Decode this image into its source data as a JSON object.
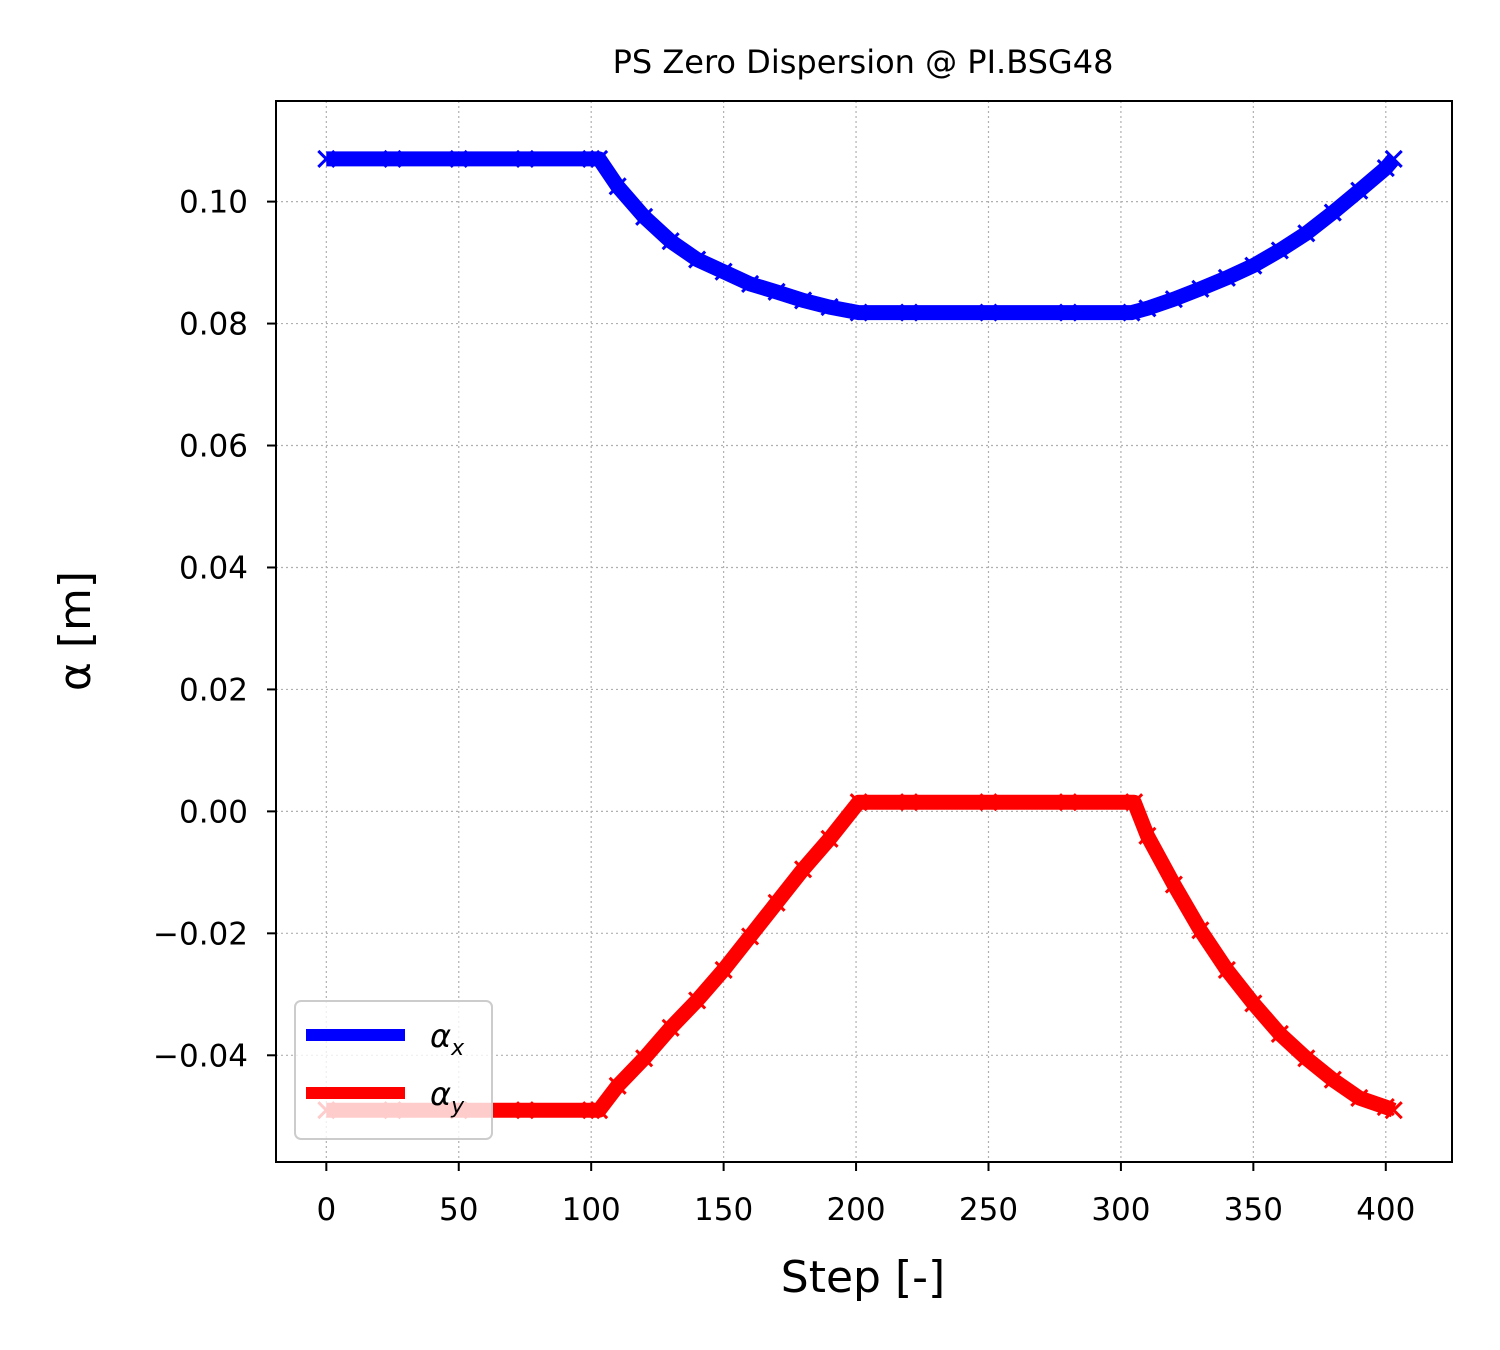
{
  "chart_data": {
    "type": "scatter",
    "title": "PS Zero Dispersion @ PI.BSG48",
    "xlabel": "Step [-]",
    "ylabel": "α [m]",
    "xlim": [
      -19,
      425
    ],
    "ylim": [
      -0.0575,
      0.1165
    ],
    "xticks": [
      0,
      50,
      100,
      150,
      200,
      250,
      300,
      350,
      400
    ],
    "yticks": [
      -0.04,
      -0.02,
      0.0,
      0.02,
      0.04,
      0.06,
      0.08,
      0.1
    ],
    "xtick_labels": [
      "0",
      "50",
      "100",
      "150",
      "200",
      "250",
      "300",
      "350",
      "400"
    ],
    "ytick_labels": [
      "−0.04",
      "−0.02",
      "0.00",
      "0.02",
      "0.04",
      "0.06",
      "0.08",
      "0.10"
    ],
    "grid": true,
    "legend_position": "lower-left",
    "marker": "x",
    "series": [
      {
        "name_base": "α",
        "name_sub": "x",
        "color": "#0000ff",
        "x": [
          0,
          25,
          50,
          75,
          100,
          103,
          110,
          120,
          130,
          140,
          150,
          160,
          170,
          180,
          190,
          201,
          220,
          250,
          280,
          304,
          310,
          320,
          330,
          340,
          350,
          360,
          370,
          380,
          390,
          400,
          403
        ],
        "y": [
          0.107,
          0.107,
          0.107,
          0.107,
          0.107,
          0.107,
          0.1025,
          0.0975,
          0.0935,
          0.0905,
          0.0885,
          0.0865,
          0.0852,
          0.0838,
          0.0827,
          0.0818,
          0.0818,
          0.0818,
          0.0818,
          0.0818,
          0.0825,
          0.084,
          0.0857,
          0.0875,
          0.0895,
          0.092,
          0.0948,
          0.0982,
          0.1018,
          0.1055,
          0.107
        ]
      },
      {
        "name_base": "α",
        "name_sub": "y",
        "color": "#ff0000",
        "x": [
          0,
          25,
          50,
          75,
          100,
          103,
          110,
          120,
          130,
          140,
          150,
          160,
          170,
          180,
          190,
          201,
          220,
          250,
          280,
          305,
          310,
          320,
          330,
          340,
          350,
          360,
          370,
          380,
          390,
          400,
          403
        ],
        "y": [
          -0.049,
          -0.049,
          -0.049,
          -0.049,
          -0.049,
          -0.049,
          -0.045,
          -0.0405,
          -0.0355,
          -0.031,
          -0.026,
          -0.0205,
          -0.015,
          -0.0095,
          -0.0045,
          0.0015,
          0.0015,
          0.0015,
          0.0015,
          0.0015,
          -0.004,
          -0.012,
          -0.0195,
          -0.026,
          -0.0315,
          -0.0365,
          -0.0405,
          -0.044,
          -0.047,
          -0.0485,
          -0.049
        ]
      }
    ]
  }
}
